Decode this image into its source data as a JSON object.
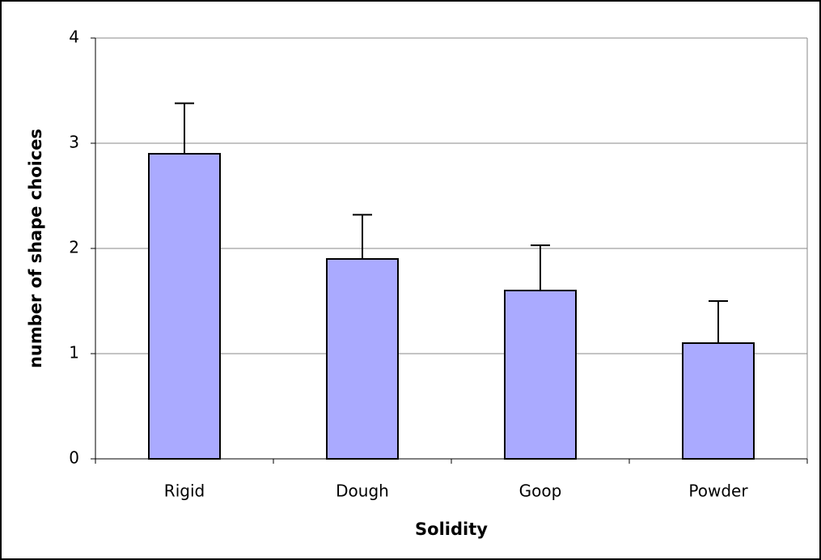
{
  "chart_data": {
    "type": "bar",
    "x_label": "Solidity",
    "y_label": "number of shape choices",
    "categories": [
      "Rigid",
      "Dough",
      "Goop",
      "Powder"
    ],
    "values": [
      2.9,
      1.9,
      1.6,
      1.1
    ],
    "errors": [
      0.48,
      0.42,
      0.43,
      0.4
    ],
    "color": "#aaaaff",
    "ylim": [
      0,
      4
    ],
    "yticks": [
      0,
      1,
      2,
      3,
      4
    ],
    "grid": true
  }
}
